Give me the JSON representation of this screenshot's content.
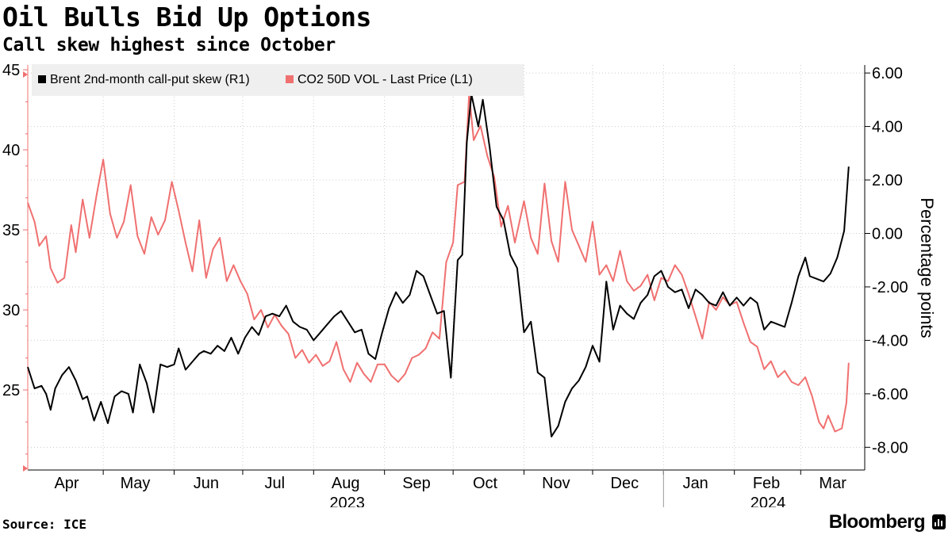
{
  "header": {
    "title": "Oil Bulls Bid Up Options",
    "subtitle": "Call skew highest since October"
  },
  "footer": {
    "source": "Source: ICE",
    "brand": "Bloomberg"
  },
  "colors": {
    "brent": "#000000",
    "co2": "#f07070",
    "grid": "#cccccc",
    "axis": "#000000",
    "left_axis": "#f07070"
  },
  "chart_data": {
    "type": "line",
    "title": "Oil Bulls Bid Up Options",
    "subtitle": "Call skew highest since October",
    "x_range": [
      "2023-03-29",
      "2024-03-29"
    ],
    "x_months": [
      {
        "label": "Apr",
        "date": "2023-04-15"
      },
      {
        "label": "May",
        "date": "2023-05-15"
      },
      {
        "label": "Jun",
        "date": "2023-06-15"
      },
      {
        "label": "Jul",
        "date": "2023-07-15"
      },
      {
        "label": "Aug",
        "date": "2023-08-15"
      },
      {
        "label": "Sep",
        "date": "2023-09-15"
      },
      {
        "label": "Oct",
        "date": "2023-10-15"
      },
      {
        "label": "Nov",
        "date": "2023-11-15"
      },
      {
        "label": "Dec",
        "date": "2023-12-15"
      },
      {
        "label": "Jan",
        "date": "2024-01-15"
      },
      {
        "label": "Feb",
        "date": "2024-02-15"
      },
      {
        "label": "Mar",
        "date": "2024-03-15"
      }
    ],
    "x_years": [
      {
        "label": "2023",
        "date": "2023-08-15"
      },
      {
        "label": "2024",
        "date": "2024-02-15"
      }
    ],
    "y_left": {
      "ticks": [
        "45",
        "40",
        "35",
        "30",
        "25"
      ],
      "tick_values": [
        45,
        40,
        35,
        30,
        25
      ],
      "range": [
        20,
        45.3
      ]
    },
    "y_right": {
      "ticks": [
        "6.00",
        "4.00",
        "2.00",
        "0.00",
        "-2.00",
        "-4.00",
        "-6.00",
        "-8.00"
      ],
      "tick_values": [
        6,
        4,
        2,
        0,
        -2,
        -4,
        -6,
        -8
      ],
      "range": [
        -8.85,
        6.3
      ],
      "label": "Percentage points"
    },
    "grid": true,
    "legend": "top-left",
    "series": [
      {
        "name": "Brent 2nd-month call-put skew (R1)",
        "axis": "right",
        "points": [
          [
            "2023-03-29",
            -5.0
          ],
          [
            "2023-04-01",
            -5.8
          ],
          [
            "2023-04-04",
            -5.7
          ],
          [
            "2023-04-06",
            -6.0
          ],
          [
            "2023-04-08",
            -6.6
          ],
          [
            "2023-04-10",
            -5.8
          ],
          [
            "2023-04-13",
            -5.3
          ],
          [
            "2023-04-16",
            -5.0
          ],
          [
            "2023-04-19",
            -5.5
          ],
          [
            "2023-04-22",
            -6.2
          ],
          [
            "2023-04-24",
            -6.1
          ],
          [
            "2023-04-27",
            -7.0
          ],
          [
            "2023-04-30",
            -6.3
          ],
          [
            "2023-05-03",
            -7.1
          ],
          [
            "2023-05-06",
            -6.1
          ],
          [
            "2023-05-09",
            -5.9
          ],
          [
            "2023-05-12",
            -6.0
          ],
          [
            "2023-05-14",
            -6.7
          ],
          [
            "2023-05-17",
            -4.9
          ],
          [
            "2023-05-20",
            -5.6
          ],
          [
            "2023-05-23",
            -6.7
          ],
          [
            "2023-05-26",
            -4.9
          ],
          [
            "2023-05-29",
            -5.0
          ],
          [
            "2023-06-01",
            -4.9
          ],
          [
            "2023-06-03",
            -4.3
          ],
          [
            "2023-06-06",
            -5.1
          ],
          [
            "2023-06-09",
            -4.8
          ],
          [
            "2023-06-12",
            -4.5
          ],
          [
            "2023-06-14",
            -4.4
          ],
          [
            "2023-06-17",
            -4.5
          ],
          [
            "2023-06-20",
            -4.2
          ],
          [
            "2023-06-23",
            -4.4
          ],
          [
            "2023-06-26",
            -3.9
          ],
          [
            "2023-06-29",
            -4.5
          ],
          [
            "2023-07-02",
            -3.9
          ],
          [
            "2023-07-05",
            -3.5
          ],
          [
            "2023-07-08",
            -3.8
          ],
          [
            "2023-07-11",
            -3.1
          ],
          [
            "2023-07-14",
            -3.0
          ],
          [
            "2023-07-17",
            -3.1
          ],
          [
            "2023-07-20",
            -2.7
          ],
          [
            "2023-07-23",
            -3.3
          ],
          [
            "2023-07-26",
            -3.5
          ],
          [
            "2023-07-29",
            -3.6
          ],
          [
            "2023-08-01",
            -4.0
          ],
          [
            "2023-08-04",
            -3.7
          ],
          [
            "2023-08-07",
            -3.4
          ],
          [
            "2023-08-10",
            -3.1
          ],
          [
            "2023-08-13",
            -2.9
          ],
          [
            "2023-08-16",
            -3.3
          ],
          [
            "2023-08-19",
            -3.7
          ],
          [
            "2023-08-22",
            -3.6
          ],
          [
            "2023-08-25",
            -4.5
          ],
          [
            "2023-08-28",
            -4.7
          ],
          [
            "2023-08-31",
            -3.7
          ],
          [
            "2023-09-03",
            -2.8
          ],
          [
            "2023-09-06",
            -2.2
          ],
          [
            "2023-09-09",
            -2.6
          ],
          [
            "2023-09-12",
            -2.3
          ],
          [
            "2023-09-15",
            -1.4
          ],
          [
            "2023-09-18",
            -1.6
          ],
          [
            "2023-09-21",
            -2.3
          ],
          [
            "2023-09-24",
            -3.0
          ],
          [
            "2023-09-27",
            -2.9
          ],
          [
            "2023-09-30",
            -5.4
          ],
          [
            "2023-10-03",
            -1.0
          ],
          [
            "2023-10-05",
            -0.8
          ],
          [
            "2023-10-07",
            3.4
          ],
          [
            "2023-10-09",
            5.2
          ],
          [
            "2023-10-12",
            4.0
          ],
          [
            "2023-10-14",
            5.0
          ],
          [
            "2023-10-17",
            3.2
          ],
          [
            "2023-10-20",
            1.0
          ],
          [
            "2023-10-23",
            0.5
          ],
          [
            "2023-10-26",
            -0.8
          ],
          [
            "2023-10-29",
            -1.3
          ],
          [
            "2023-11-01",
            -3.7
          ],
          [
            "2023-11-04",
            -3.3
          ],
          [
            "2023-11-07",
            -5.2
          ],
          [
            "2023-11-10",
            -5.4
          ],
          [
            "2023-11-13",
            -7.6
          ],
          [
            "2023-11-16",
            -7.2
          ],
          [
            "2023-11-19",
            -6.3
          ],
          [
            "2023-11-22",
            -5.8
          ],
          [
            "2023-11-25",
            -5.5
          ],
          [
            "2023-11-28",
            -5.0
          ],
          [
            "2023-12-01",
            -4.2
          ],
          [
            "2023-12-04",
            -4.8
          ],
          [
            "2023-12-07",
            -1.8
          ],
          [
            "2023-12-10",
            -3.6
          ],
          [
            "2023-12-13",
            -2.7
          ],
          [
            "2023-12-16",
            -3.0
          ],
          [
            "2023-12-19",
            -3.2
          ],
          [
            "2023-12-22",
            -2.6
          ],
          [
            "2023-12-25",
            -2.3
          ],
          [
            "2023-12-28",
            -1.6
          ],
          [
            "2023-12-31",
            -1.4
          ],
          [
            "2024-01-03",
            -2.0
          ],
          [
            "2024-01-06",
            -2.2
          ],
          [
            "2024-01-09",
            -2.1
          ],
          [
            "2024-01-12",
            -2.8
          ],
          [
            "2024-01-15",
            -2.1
          ],
          [
            "2024-01-18",
            -2.3
          ],
          [
            "2024-01-21",
            -2.6
          ],
          [
            "2024-01-24",
            -2.7
          ],
          [
            "2024-01-27",
            -2.2
          ],
          [
            "2024-01-30",
            -2.7
          ],
          [
            "2024-02-02",
            -2.4
          ],
          [
            "2024-02-05",
            -2.7
          ],
          [
            "2024-02-08",
            -2.4
          ],
          [
            "2024-02-11",
            -2.6
          ],
          [
            "2024-02-14",
            -3.6
          ],
          [
            "2024-02-17",
            -3.3
          ],
          [
            "2024-02-20",
            -3.4
          ],
          [
            "2024-02-23",
            -3.5
          ],
          [
            "2024-02-26",
            -2.6
          ],
          [
            "2024-02-29",
            -1.6
          ],
          [
            "2024-03-03",
            -0.9
          ],
          [
            "2024-03-05",
            -1.6
          ],
          [
            "2024-03-08",
            -1.7
          ],
          [
            "2024-03-11",
            -1.8
          ],
          [
            "2024-03-14",
            -1.5
          ],
          [
            "2024-03-17",
            -0.9
          ],
          [
            "2024-03-20",
            0.1
          ],
          [
            "2024-03-22",
            2.5
          ]
        ]
      },
      {
        "name": "CO2 50D VOL - Last Price (L1)",
        "axis": "left",
        "points": [
          [
            "2023-03-29",
            36.7
          ],
          [
            "2023-04-01",
            35.5
          ],
          [
            "2023-04-03",
            34.0
          ],
          [
            "2023-04-06",
            34.6
          ],
          [
            "2023-04-08",
            32.6
          ],
          [
            "2023-04-11",
            31.7
          ],
          [
            "2023-04-14",
            32.0
          ],
          [
            "2023-04-17",
            35.3
          ],
          [
            "2023-04-19",
            33.6
          ],
          [
            "2023-04-22",
            36.9
          ],
          [
            "2023-04-25",
            34.5
          ],
          [
            "2023-04-28",
            37.1
          ],
          [
            "2023-05-01",
            39.4
          ],
          [
            "2023-05-04",
            36.0
          ],
          [
            "2023-05-07",
            34.5
          ],
          [
            "2023-05-10",
            35.5
          ],
          [
            "2023-05-13",
            37.8
          ],
          [
            "2023-05-16",
            34.6
          ],
          [
            "2023-05-19",
            33.5
          ],
          [
            "2023-05-22",
            35.8
          ],
          [
            "2023-05-25",
            34.7
          ],
          [
            "2023-05-28",
            35.6
          ],
          [
            "2023-05-31",
            38.0
          ],
          [
            "2023-06-03",
            36.2
          ],
          [
            "2023-06-06",
            34.2
          ],
          [
            "2023-06-09",
            32.4
          ],
          [
            "2023-06-12",
            35.6
          ],
          [
            "2023-06-15",
            32.0
          ],
          [
            "2023-06-18",
            33.8
          ],
          [
            "2023-06-21",
            34.5
          ],
          [
            "2023-06-24",
            31.8
          ],
          [
            "2023-06-27",
            32.8
          ],
          [
            "2023-06-30",
            31.8
          ],
          [
            "2023-07-03",
            31.0
          ],
          [
            "2023-07-06",
            29.4
          ],
          [
            "2023-07-09",
            30.0
          ],
          [
            "2023-07-12",
            28.9
          ],
          [
            "2023-07-15",
            29.7
          ],
          [
            "2023-07-18",
            29.0
          ],
          [
            "2023-07-21",
            28.5
          ],
          [
            "2023-07-24",
            27.0
          ],
          [
            "2023-07-27",
            27.5
          ],
          [
            "2023-07-30",
            26.7
          ],
          [
            "2023-08-02",
            27.2
          ],
          [
            "2023-08-05",
            26.5
          ],
          [
            "2023-08-08",
            26.8
          ],
          [
            "2023-08-11",
            28.0
          ],
          [
            "2023-08-14",
            26.3
          ],
          [
            "2023-08-17",
            25.5
          ],
          [
            "2023-08-20",
            26.7
          ],
          [
            "2023-08-23",
            26.0
          ],
          [
            "2023-08-26",
            25.5
          ],
          [
            "2023-08-29",
            26.6
          ],
          [
            "2023-09-01",
            26.6
          ],
          [
            "2023-09-04",
            25.9
          ],
          [
            "2023-09-07",
            25.5
          ],
          [
            "2023-09-10",
            26.0
          ],
          [
            "2023-09-13",
            27.0
          ],
          [
            "2023-09-16",
            27.2
          ],
          [
            "2023-09-19",
            27.6
          ],
          [
            "2023-09-22",
            28.6
          ],
          [
            "2023-09-25",
            28.2
          ],
          [
            "2023-09-28",
            33.0
          ],
          [
            "2023-10-01",
            34.2
          ],
          [
            "2023-10-03",
            37.8
          ],
          [
            "2023-10-06",
            38.0
          ],
          [
            "2023-10-08",
            43.5
          ],
          [
            "2023-10-10",
            40.6
          ],
          [
            "2023-10-13",
            41.5
          ],
          [
            "2023-10-16",
            39.6
          ],
          [
            "2023-10-19",
            38.3
          ],
          [
            "2023-10-22",
            35.2
          ],
          [
            "2023-10-25",
            36.5
          ],
          [
            "2023-10-28",
            34.2
          ],
          [
            "2023-11-01",
            36.8
          ],
          [
            "2023-11-04",
            34.5
          ],
          [
            "2023-11-07",
            33.5
          ],
          [
            "2023-11-10",
            37.9
          ],
          [
            "2023-11-13",
            34.3
          ],
          [
            "2023-11-16",
            33.0
          ],
          [
            "2023-11-19",
            38.0
          ],
          [
            "2023-11-22",
            35.0
          ],
          [
            "2023-11-25",
            34.0
          ],
          [
            "2023-11-28",
            33.0
          ],
          [
            "2023-12-01",
            35.5
          ],
          [
            "2023-12-04",
            32.2
          ],
          [
            "2023-12-07",
            32.8
          ],
          [
            "2023-12-10",
            31.8
          ],
          [
            "2023-12-13",
            33.7
          ],
          [
            "2023-12-16",
            31.8
          ],
          [
            "2023-12-19",
            31.2
          ],
          [
            "2023-12-22",
            31.5
          ],
          [
            "2023-12-25",
            32.2
          ],
          [
            "2023-12-28",
            30.6
          ],
          [
            "2023-12-31",
            32.0
          ],
          [
            "2024-01-03",
            31.8
          ],
          [
            "2024-01-06",
            32.8
          ],
          [
            "2024-01-09",
            32.2
          ],
          [
            "2024-01-12",
            31.0
          ],
          [
            "2024-01-15",
            29.6
          ],
          [
            "2024-01-18",
            28.2
          ],
          [
            "2024-01-21",
            30.5
          ],
          [
            "2024-01-24",
            30.0
          ],
          [
            "2024-01-27",
            30.8
          ],
          [
            "2024-01-30",
            30.3
          ],
          [
            "2024-02-02",
            30.5
          ],
          [
            "2024-02-05",
            29.2
          ],
          [
            "2024-02-08",
            28.0
          ],
          [
            "2024-02-11",
            27.7
          ],
          [
            "2024-02-14",
            26.3
          ],
          [
            "2024-02-17",
            26.8
          ],
          [
            "2024-02-20",
            25.8
          ],
          [
            "2024-02-23",
            26.2
          ],
          [
            "2024-02-26",
            25.5
          ],
          [
            "2024-02-29",
            25.3
          ],
          [
            "2024-03-03",
            25.8
          ],
          [
            "2024-03-06",
            24.6
          ],
          [
            "2024-03-09",
            23.0
          ],
          [
            "2024-03-11",
            22.6
          ],
          [
            "2024-03-13",
            23.4
          ],
          [
            "2024-03-16",
            22.4
          ],
          [
            "2024-03-19",
            22.6
          ],
          [
            "2024-03-21",
            24.2
          ],
          [
            "2024-03-22",
            26.7
          ]
        ]
      }
    ]
  }
}
